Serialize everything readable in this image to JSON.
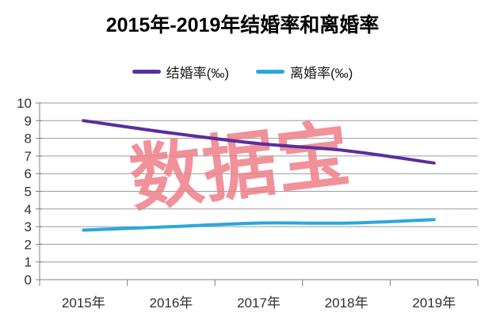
{
  "chart_data": {
    "type": "line",
    "title": "2015年-2019年结婚率和离婚率",
    "categories": [
      "2015年",
      "2016年",
      "2017年",
      "2018年",
      "2019年"
    ],
    "series": [
      {
        "name": "结婚率(‰)",
        "color": "#5B2D9E",
        "values": [
          9.0,
          8.3,
          7.7,
          7.3,
          6.6
        ]
      },
      {
        "name": "离婚率(‰)",
        "color": "#29A8DC",
        "values": [
          2.8,
          3.0,
          3.2,
          3.2,
          3.4
        ]
      }
    ],
    "ylim": [
      0,
      10
    ],
    "ytick_step": 1,
    "yticks": [
      0,
      1,
      2,
      3,
      4,
      5,
      6,
      7,
      8,
      9,
      10
    ],
    "grid": true,
    "legend_position": "top",
    "smooth": true,
    "grid_color": "#9C9C9C",
    "axis_color": "#7F7F7F",
    "label_color": "#303030",
    "line_width": 4,
    "watermark": {
      "text": "数据宝",
      "color": "#EF7E88"
    }
  }
}
